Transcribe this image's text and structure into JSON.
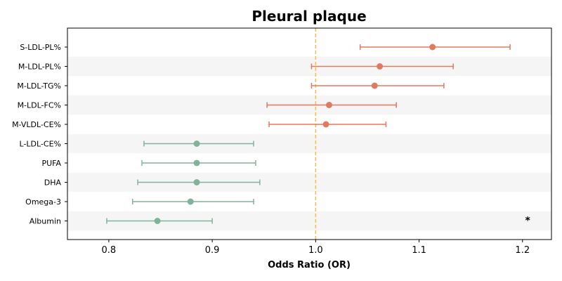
{
  "chart_data": {
    "type": "forest",
    "title": "Pleural plaque",
    "xlabel": "Odds Ratio (OR)",
    "xlim": [
      0.76,
      1.228
    ],
    "xticks": [
      0.8,
      0.9,
      1.0,
      1.1,
      1.2
    ],
    "xtick_labels": [
      "0.8",
      "0.9",
      "1.0",
      "1.1",
      "1.2"
    ],
    "reference_line": 1.0,
    "colors": {
      "positive": "#e07a5f",
      "negative": "#81b29a",
      "reference": "#f6bd60",
      "stripe": "#f5f5f5"
    },
    "rows": [
      {
        "label": "S-LDL-PL%",
        "or": 1.113,
        "lo": 1.043,
        "hi": 1.188,
        "color": "#e07a5f"
      },
      {
        "label": "M-LDL-PL%",
        "or": 1.062,
        "lo": 0.996,
        "hi": 1.133,
        "color": "#e07a5f"
      },
      {
        "label": "M-LDL-TG%",
        "or": 1.057,
        "lo": 0.996,
        "hi": 1.124,
        "color": "#e07a5f"
      },
      {
        "label": "M-LDL-FC%",
        "or": 1.013,
        "lo": 0.953,
        "hi": 1.078,
        "color": "#e07a5f"
      },
      {
        "label": "M-VLDL-CE%",
        "or": 1.01,
        "lo": 0.955,
        "hi": 1.068,
        "color": "#e07a5f"
      },
      {
        "label": "L-LDL-CE%",
        "or": 0.885,
        "lo": 0.834,
        "hi": 0.94,
        "color": "#81b29a"
      },
      {
        "label": "PUFA",
        "or": 0.885,
        "lo": 0.832,
        "hi": 0.942,
        "color": "#81b29a"
      },
      {
        "label": "DHA",
        "or": 0.885,
        "lo": 0.828,
        "hi": 0.946,
        "color": "#81b29a"
      },
      {
        "label": "Omega-3",
        "or": 0.879,
        "lo": 0.823,
        "hi": 0.94,
        "color": "#81b29a"
      },
      {
        "label": "Albumin",
        "or": 0.847,
        "lo": 0.798,
        "hi": 0.9,
        "color": "#81b29a"
      }
    ],
    "annotations": [
      {
        "row": "Albumin",
        "text": "*",
        "x": 1.205
      }
    ]
  }
}
